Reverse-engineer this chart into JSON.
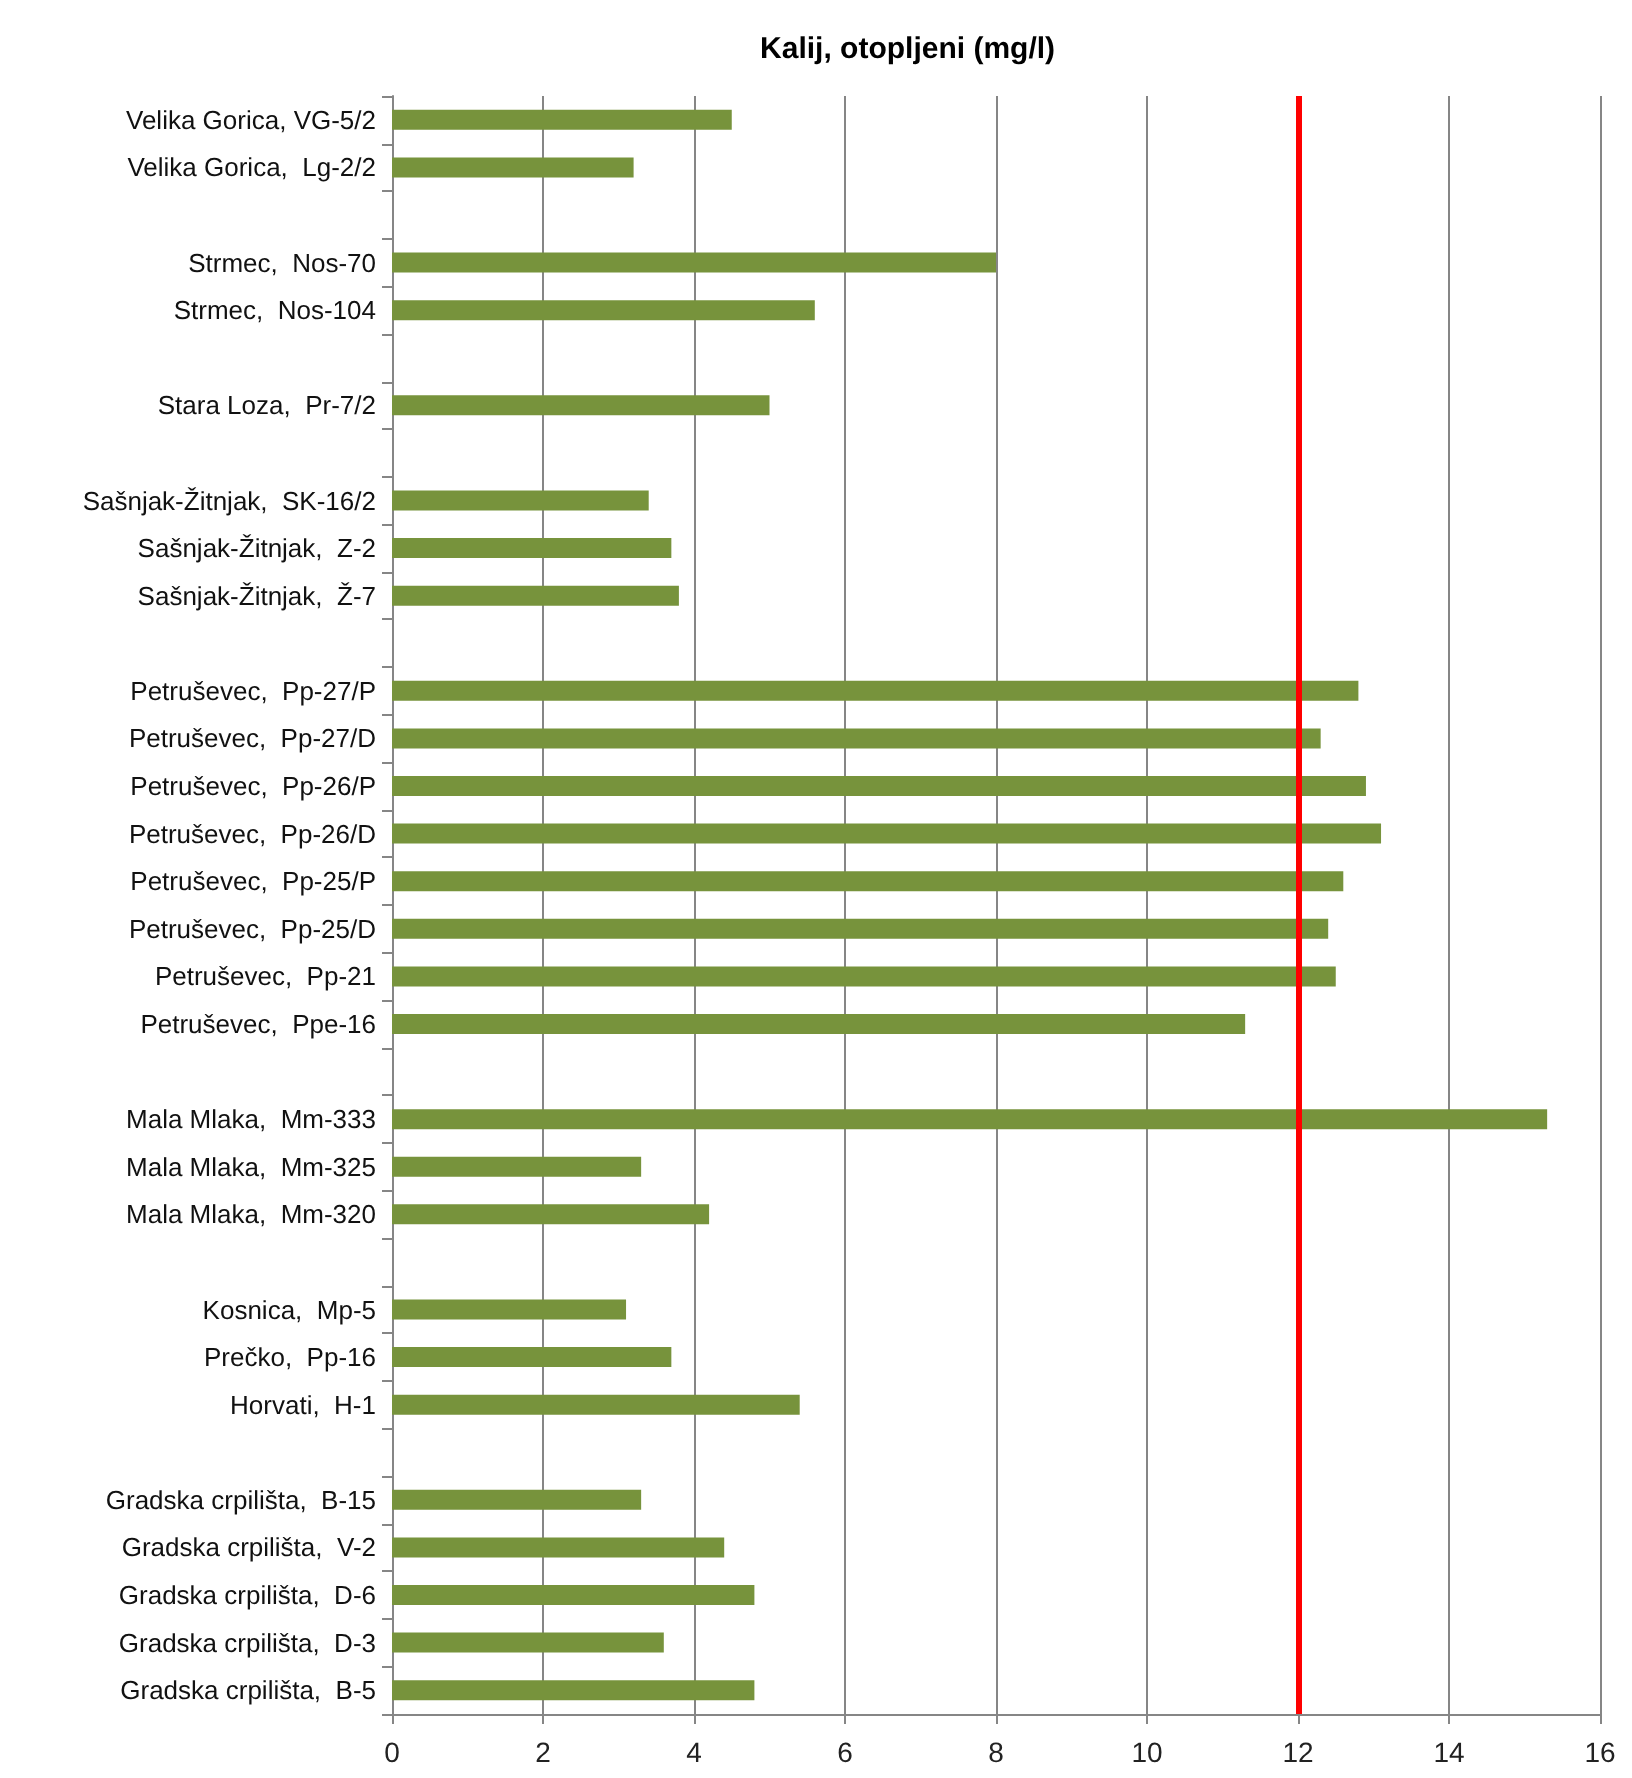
{
  "chart_data": {
    "type": "bar",
    "orientation": "horizontal",
    "title": "Kalij, otopljeni (mg/l)",
    "categories": [
      "Velika Gorica, VG-5/2",
      "Velika Gorica,  Lg-2/2",
      null,
      "Strmec,  Nos-70",
      "Strmec,  Nos-104",
      null,
      "Stara Loza,  Pr-7/2",
      null,
      "Sašnjak-Žitnjak,  SK-16/2",
      "Sašnjak-Žitnjak,  Z-2",
      "Sašnjak-Žitnjak,  Ž-7",
      null,
      "Petruševec,  Pp-27/P",
      "Petruševec,  Pp-27/D",
      "Petruševec,  Pp-26/P",
      "Petruševec,  Pp-26/D",
      "Petruševec,  Pp-25/P",
      "Petruševec,  Pp-25/D",
      "Petruševec,  Pp-21",
      "Petruševec,  Ppe-16",
      null,
      "Mala Mlaka,  Mm-333",
      "Mala Mlaka,  Mm-325",
      "Mala Mlaka,  Mm-320",
      null,
      "Kosnica,  Mp-5",
      "Prečko,  Pp-16",
      "Horvati,  H-1",
      null,
      "Gradska crpilišta,  B-15",
      "Gradska crpilišta,  V-2",
      "Gradska crpilišta,  D-6",
      "Gradska crpilišta,  D-3",
      "Gradska crpilišta,  B-5"
    ],
    "values": [
      4.5,
      3.2,
      null,
      8.0,
      5.6,
      null,
      5.0,
      null,
      3.4,
      3.7,
      3.8,
      null,
      12.8,
      12.3,
      12.9,
      13.1,
      12.6,
      12.4,
      12.5,
      11.3,
      null,
      15.3,
      3.3,
      4.2,
      null,
      3.1,
      3.7,
      5.4,
      null,
      3.3,
      4.4,
      4.8,
      3.6,
      4.8
    ],
    "color": "#77933c",
    "xlim": [
      0,
      16
    ],
    "xticks": [
      0,
      2,
      4,
      6,
      8,
      10,
      12,
      14,
      16
    ],
    "grid": "x",
    "ref_lines": [
      {
        "axis": "x",
        "value": 12,
        "color": "#ff0000"
      }
    ]
  }
}
